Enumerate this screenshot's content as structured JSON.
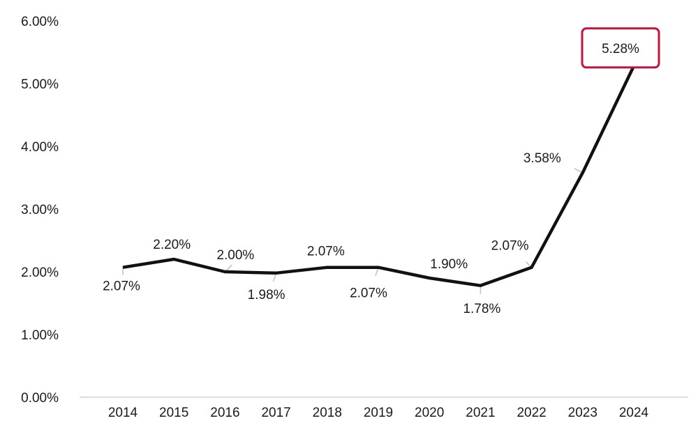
{
  "chart_data": {
    "type": "line",
    "title": "",
    "xlabel": "",
    "ylabel": "",
    "categories": [
      "2014",
      "2015",
      "2016",
      "2017",
      "2018",
      "2019",
      "2020",
      "2021",
      "2022",
      "2023",
      "2024"
    ],
    "series": [
      {
        "values": [
          2.07,
          2.2,
          2.0,
          1.98,
          2.07,
          2.07,
          1.9,
          1.78,
          2.07,
          3.58,
          5.28
        ],
        "labels": [
          "2.07%",
          "2.20%",
          "2.00%",
          "1.98%",
          "2.07%",
          "2.07%",
          "1.90%",
          "1.78%",
          "2.07%",
          "3.58%",
          "5.28%"
        ]
      }
    ],
    "ylim": [
      0,
      6
    ],
    "y_ticks": [
      "0.00%",
      "1.00%",
      "2.00%",
      "3.00%",
      "4.00%",
      "5.00%",
      "6.00%"
    ],
    "grid": false,
    "legend": "none",
    "highlight": {
      "category": "2024",
      "label": "5.28%",
      "color": "#c0143c"
    },
    "colors": {
      "line": "#111111",
      "axis": "#d0d0d0",
      "leader": "#bfbfbf"
    }
  }
}
